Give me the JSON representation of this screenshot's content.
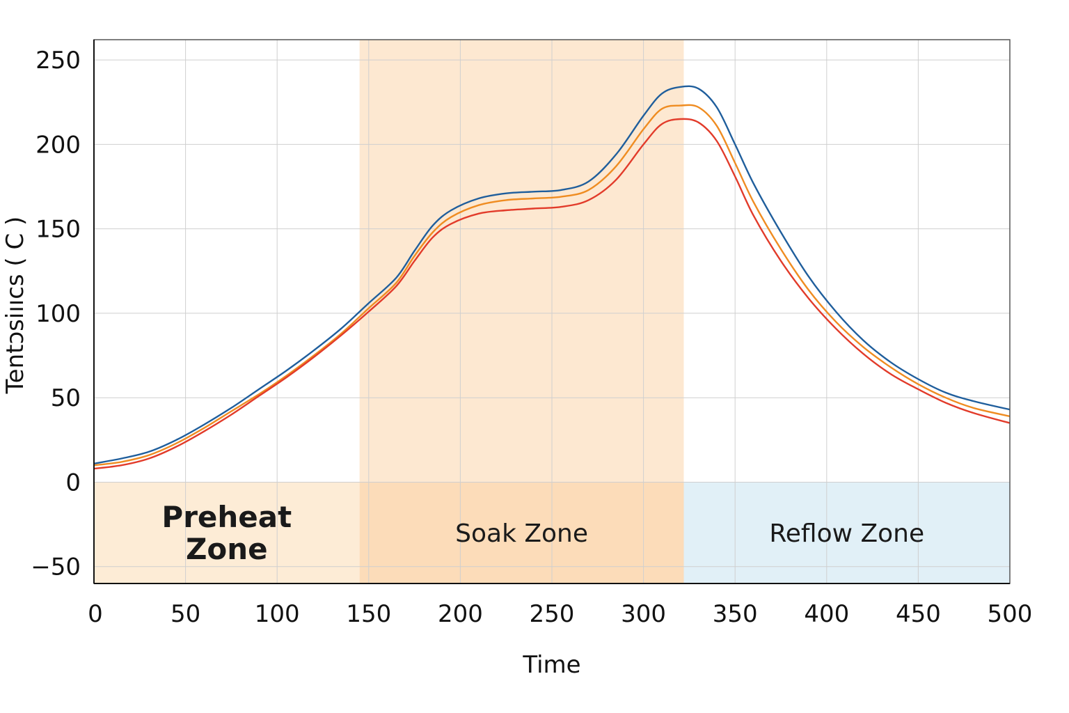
{
  "chart_data": {
    "type": "line",
    "title": "",
    "xlabel": "Time",
    "ylabel": "Tentɔsiııcs ( C )",
    "xlim": [
      0,
      500
    ],
    "ylim": [
      -60,
      262
    ],
    "x_ticks": [
      "0",
      "50",
      "100",
      "150",
      "200",
      "250",
      "300",
      "350",
      "400",
      "450",
      "500"
    ],
    "y_ticks": [
      "250",
      "200",
      "150",
      "100",
      "50",
      "0",
      "−50"
    ],
    "grid": true,
    "zones": [
      {
        "label_lines": [
          "Preheat",
          "Zone"
        ],
        "x_start": 0,
        "x_end": 145,
        "color": "#fdecd6"
      },
      {
        "label_lines": [
          "Soak Zone"
        ],
        "x_start": 145,
        "x_end": 322,
        "color": "#fcdcb9"
      },
      {
        "label_lines": [
          "Reflow Zone"
        ],
        "x_start": 322,
        "x_end": 500,
        "color": "#e1f0f7"
      }
    ],
    "x": [
      0,
      15,
      30,
      45,
      60,
      75,
      90,
      105,
      120,
      135,
      150,
      165,
      175,
      185,
      195,
      210,
      225,
      240,
      255,
      270,
      285,
      300,
      310,
      320,
      330,
      340,
      350,
      360,
      375,
      390,
      405,
      420,
      435,
      450,
      465,
      480,
      500
    ],
    "series": [
      {
        "color": "#1f5e9c",
        "values": [
          11,
          14,
          18,
          25,
          34,
          44,
          55,
          66,
          78,
          91,
          106,
          121,
          137,
          152,
          161,
          168,
          171,
          172,
          173,
          178,
          194,
          217,
          230,
          234,
          233,
          222,
          200,
          177,
          148,
          122,
          101,
          84,
          71,
          61,
          53,
          48,
          43
        ]
      },
      {
        "color": "#ef8c21",
        "values": [
          10,
          12,
          16,
          23,
          32,
          42,
          52,
          63,
          75,
          88,
          103,
          118,
          134,
          148,
          157,
          164,
          167,
          168,
          169,
          173,
          187,
          209,
          221,
          223,
          222,
          211,
          189,
          166,
          138,
          114,
          95,
          80,
          68,
          58,
          50,
          44,
          39
        ]
      },
      {
        "color": "#e23b2a",
        "values": [
          8,
          10,
          14,
          21,
          30,
          40,
          51,
          62,
          74,
          87,
          101,
          116,
          131,
          145,
          153,
          159,
          161,
          162,
          163,
          167,
          179,
          200,
          212,
          215,
          213,
          202,
          181,
          158,
          131,
          109,
          91,
          76,
          64,
          55,
          47,
          41,
          35
        ]
      }
    ]
  }
}
